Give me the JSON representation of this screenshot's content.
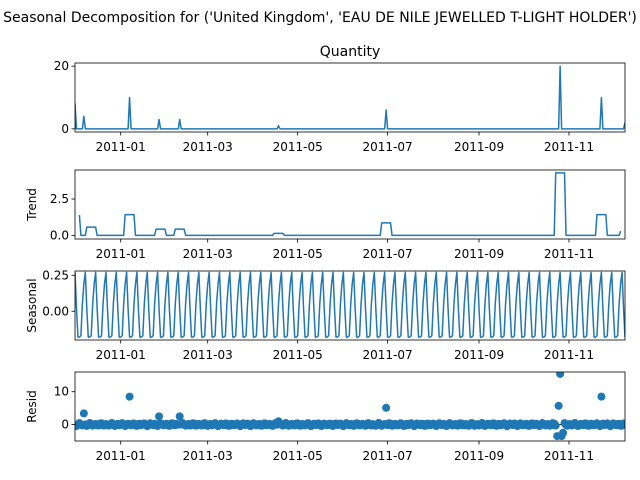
{
  "figure": {
    "suptitle": "Seasonal Decomposition for ('United Kingdom', 'EAU DE NILE JEWELLED T-LIGHT HOLDER')",
    "line_color": "#1f77b4"
  },
  "chart_data": [
    {
      "type": "line",
      "title": "Quantity",
      "ylabel": "",
      "ylim": [
        -1,
        21
      ],
      "yticks": [
        0,
        20
      ],
      "x_range": [
        "2010-12-01",
        "2011-12-09"
      ],
      "xtick_labels": [
        "2011-01",
        "2011-03",
        "2011-05",
        "2011-07",
        "2011-09",
        "2011-11"
      ],
      "xtick_dates": [
        "2011-01-01",
        "2011-03-01",
        "2011-05-01",
        "2011-07-01",
        "2011-09-01",
        "2011-11-01"
      ],
      "baseline": 0,
      "spikes": [
        {
          "date": "2010-12-01",
          "value": 8
        },
        {
          "date": "2010-12-07",
          "value": 4
        },
        {
          "date": "2011-01-07",
          "value": 10
        },
        {
          "date": "2011-01-27",
          "value": 3
        },
        {
          "date": "2011-02-10",
          "value": 3
        },
        {
          "date": "2011-04-18",
          "value": 1
        },
        {
          "date": "2011-06-30",
          "value": 6
        },
        {
          "date": "2011-10-26",
          "value": 20
        },
        {
          "date": "2011-11-23",
          "value": 10
        },
        {
          "date": "2011-12-09",
          "value": 2
        }
      ]
    },
    {
      "type": "line",
      "title": "",
      "ylabel": "Trend",
      "ylim": [
        -0.25,
        4.5
      ],
      "yticks": [
        0.0,
        2.5
      ],
      "ytick_labels": [
        "0.0",
        "2.5"
      ],
      "x_range": [
        "2010-12-01",
        "2011-12-09"
      ],
      "xtick_labels": [
        "2011-01",
        "2011-03",
        "2011-05",
        "2011-07",
        "2011-09",
        "2011-11"
      ],
      "xtick_dates": [
        "2011-01-01",
        "2011-03-01",
        "2011-05-01",
        "2011-07-01",
        "2011-09-01",
        "2011-11-01"
      ],
      "points": [
        {
          "date": "2010-12-04",
          "value": 1.4
        },
        {
          "date": "2010-12-05",
          "value": 0
        },
        {
          "date": "2010-12-08",
          "value": 0
        },
        {
          "date": "2010-12-09",
          "value": 0.57
        },
        {
          "date": "2010-12-15",
          "value": 0.57
        },
        {
          "date": "2010-12-16",
          "value": 0
        },
        {
          "date": "2011-01-03",
          "value": 0
        },
        {
          "date": "2011-01-04",
          "value": 1.43
        },
        {
          "date": "2011-01-10",
          "value": 1.43
        },
        {
          "date": "2011-01-11",
          "value": 0
        },
        {
          "date": "2011-01-24",
          "value": 0
        },
        {
          "date": "2011-01-25",
          "value": 0.43
        },
        {
          "date": "2011-01-31",
          "value": 0.43
        },
        {
          "date": "2011-02-01",
          "value": 0
        },
        {
          "date": "2011-02-06",
          "value": 0
        },
        {
          "date": "2011-02-07",
          "value": 0.43
        },
        {
          "date": "2011-02-13",
          "value": 0.43
        },
        {
          "date": "2011-02-14",
          "value": 0
        },
        {
          "date": "2011-04-14",
          "value": 0
        },
        {
          "date": "2011-04-15",
          "value": 0.14
        },
        {
          "date": "2011-04-21",
          "value": 0.14
        },
        {
          "date": "2011-04-22",
          "value": 0
        },
        {
          "date": "2011-06-26",
          "value": 0
        },
        {
          "date": "2011-06-27",
          "value": 0.86
        },
        {
          "date": "2011-07-03",
          "value": 0.86
        },
        {
          "date": "2011-07-04",
          "value": 0
        },
        {
          "date": "2011-10-22",
          "value": 0
        },
        {
          "date": "2011-10-23",
          "value": 4.3
        },
        {
          "date": "2011-10-29",
          "value": 4.3
        },
        {
          "date": "2011-10-30",
          "value": 0
        },
        {
          "date": "2011-11-19",
          "value": 0
        },
        {
          "date": "2011-11-20",
          "value": 1.43
        },
        {
          "date": "2011-11-26",
          "value": 1.43
        },
        {
          "date": "2011-11-27",
          "value": 0
        },
        {
          "date": "2011-12-05",
          "value": 0
        },
        {
          "date": "2011-12-06",
          "value": 0.29
        }
      ]
    },
    {
      "type": "line",
      "title": "",
      "ylabel": "Seasonal",
      "ylim": [
        -0.2,
        0.28
      ],
      "yticks": [
        0.0,
        0.25
      ],
      "ytick_labels": [
        "0.00",
        "0.25"
      ],
      "x_range": [
        "2010-12-01",
        "2011-12-09"
      ],
      "xtick_labels": [
        "2011-01",
        "2011-03",
        "2011-05",
        "2011-07",
        "2011-09",
        "2011-11"
      ],
      "xtick_dates": [
        "2011-01-01",
        "2011-03-01",
        "2011-05-01",
        "2011-07-01",
        "2011-09-01",
        "2011-11-01"
      ],
      "period_days": 7,
      "weekly_pattern": [
        0.27,
        0.02,
        -0.18,
        -0.18,
        -0.17,
        0.05,
        0.19
      ]
    },
    {
      "type": "scatter",
      "title": "",
      "ylabel": "Resid",
      "ylim": [
        -5,
        16
      ],
      "yticks": [
        0,
        10
      ],
      "x_range": [
        "2010-12-01",
        "2011-12-09"
      ],
      "xtick_labels": [
        "2011-01",
        "2011-03",
        "2011-05",
        "2011-07",
        "2011-09",
        "2011-11"
      ],
      "xtick_dates": [
        "2011-01-01",
        "2011-03-01",
        "2011-05-01",
        "2011-07-01",
        "2011-09-01",
        "2011-11-01"
      ],
      "reference_line": 0,
      "outliers": [
        {
          "date": "2010-12-07",
          "value": 3.4
        },
        {
          "date": "2011-01-07",
          "value": 8.5
        },
        {
          "date": "2011-01-27",
          "value": 2.5
        },
        {
          "date": "2011-02-10",
          "value": 2.5
        },
        {
          "date": "2011-04-18",
          "value": 1.0
        },
        {
          "date": "2011-06-30",
          "value": 5.1
        },
        {
          "date": "2011-10-24",
          "value": -3.5
        },
        {
          "date": "2011-10-25",
          "value": 5.7
        },
        {
          "date": "2011-10-26",
          "value": 15.4
        },
        {
          "date": "2011-10-27",
          "value": -3.5
        },
        {
          "date": "2011-10-28",
          "value": -2.5
        },
        {
          "date": "2011-11-23",
          "value": 8.5
        }
      ]
    }
  ]
}
